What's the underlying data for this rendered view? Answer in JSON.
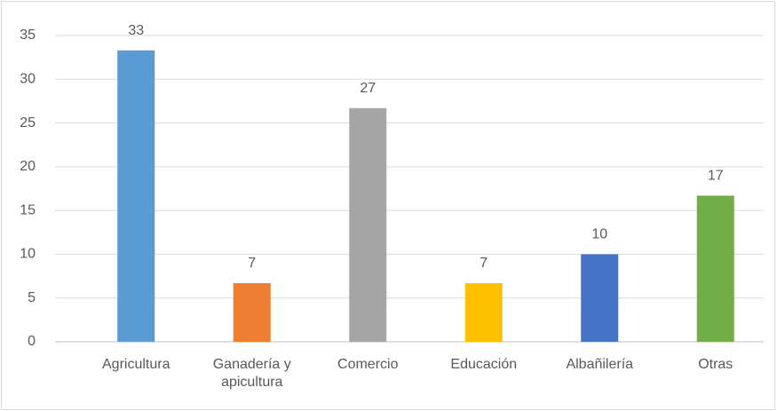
{
  "chart_data": {
    "type": "bar",
    "categories": [
      "Agricultura",
      "Ganadería y apicultura",
      "Comercio",
      "Educación",
      "Albañilería",
      "Otras"
    ],
    "values": [
      33.3,
      6.7,
      26.7,
      6.7,
      10,
      16.7
    ],
    "value_labels": [
      "33",
      "7",
      "27",
      "7",
      "10",
      "17"
    ],
    "colors": [
      "#5b9bd5",
      "#ed7d31",
      "#a5a5a5",
      "#ffc000",
      "#4472c4",
      "#70ad47"
    ],
    "ylim": [
      0,
      35
    ],
    "yticks": [
      0,
      5,
      10,
      15,
      20,
      25,
      30,
      35
    ],
    "grid": true
  }
}
